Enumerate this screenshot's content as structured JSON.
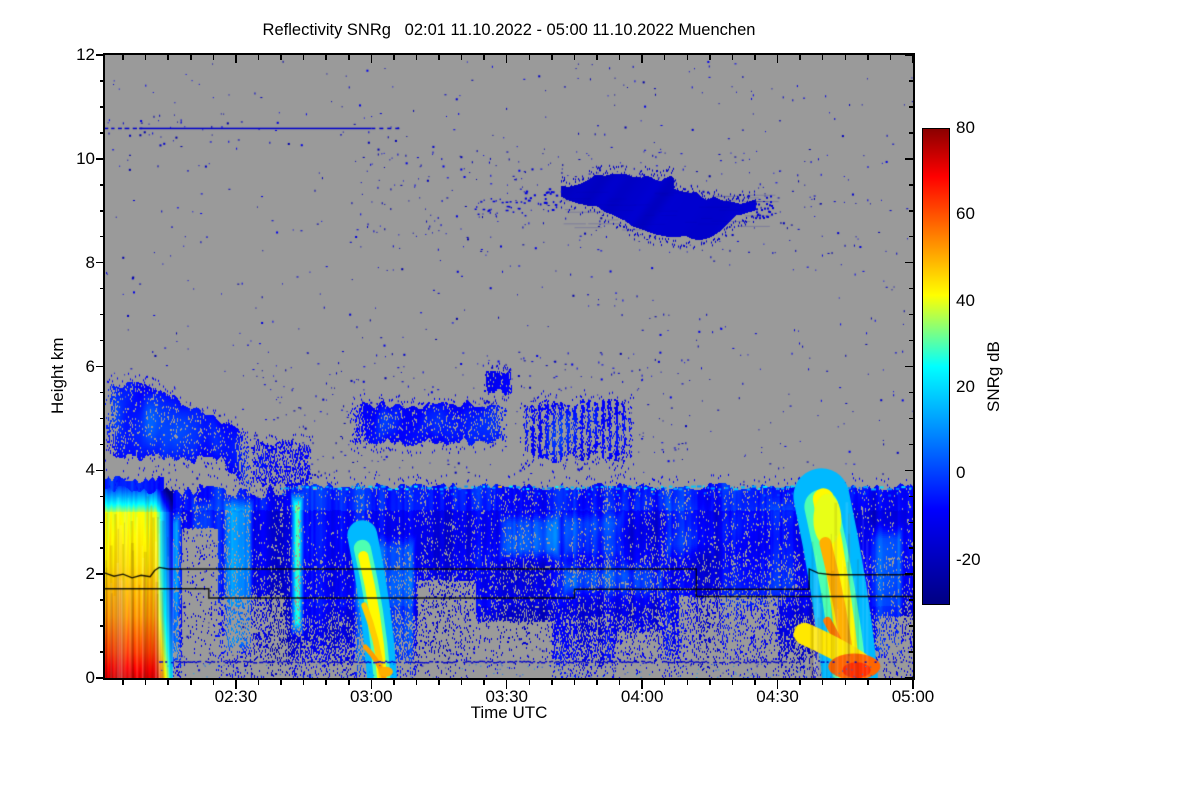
{
  "chart_data": {
    "type": "heatmap",
    "title": "Reflectivity SNRg   02:01 11.10.2022 - 05:00 11.10.2022 Muenchen",
    "station": "Muenchen",
    "date": "11.10.2022",
    "xlabel": "Time UTC",
    "ylabel": "Height km",
    "x_start": "02:01",
    "x_end": "05:00",
    "ylim_km": [
      0,
      12
    ],
    "x_ticks": [
      "02:30",
      "03:00",
      "03:30",
      "04:00",
      "04:30",
      "05:00"
    ],
    "x_minor_tick_minutes": 5,
    "y_ticks": [
      0,
      2,
      4,
      6,
      8,
      10,
      12
    ],
    "y_minor_tick_km": 0.5,
    "background_gray": "#9a9a9a",
    "colormap": "jet",
    "colorbar": {
      "label": "SNRg dB",
      "ticks": [
        80,
        60,
        40,
        20,
        0,
        -20
      ],
      "minor_tick_db": 5,
      "range_db": [
        -30,
        80
      ]
    },
    "features": {
      "speckle_noise": {
        "count": 1600,
        "db_min": -24,
        "db_max": -10
      },
      "line_10_6km": {
        "t0": "02:01",
        "t1": "03:00",
        "t1_dashed": "03:04",
        "km": 10.6,
        "db": -17
      },
      "high_cloud": {
        "wisps_t0": "03:22",
        "wisps_t1": "03:34",
        "bridge_t0": "03:34",
        "bridge_t1": "03:42",
        "dense_t0": "03:42",
        "dense_t1": "04:25",
        "tail_t1": "04:29",
        "center_km": 9.2,
        "top_km": 9.65,
        "base_km": 8.75,
        "droop_km": 8.45,
        "db": -17
      },
      "mid_clouds": [
        {
          "t0": "02:01",
          "t1": "02:33",
          "base_km": 4.25,
          "top_km": 5.62,
          "db": -7,
          "boost": 14,
          "descend_end": true
        },
        {
          "t0": "02:33",
          "t1": "02:47",
          "base_km": 3.75,
          "top_km": 4.55,
          "db": -10,
          "boost": 4,
          "sparse": 0.55
        },
        {
          "t0": "02:55",
          "t1": "03:30",
          "base_km": 4.55,
          "top_km": 5.25,
          "db": -8,
          "boost": 10
        },
        {
          "t0": "03:25",
          "t1": "03:31",
          "base_km": 5.5,
          "top_km": 5.92,
          "db": -11,
          "boost": 0
        },
        {
          "t0": "03:33",
          "t1": "03:58",
          "base_km": 4.25,
          "top_km": 5.3,
          "db": -9,
          "boost": 8,
          "streaky": true
        }
      ],
      "precip_layer": {
        "t0": "02:01",
        "t1": "05:00",
        "top_km": 3.68,
        "bright_patches": [
          {
            "t0": "02:13",
            "t1": "02:18",
            "km0": 0.2,
            "km1": 3.3,
            "boost": 22
          },
          {
            "t0": "02:20",
            "t1": "02:25",
            "km0": 2.6,
            "km1": 3.5,
            "boost": 10
          },
          {
            "t0": "02:27",
            "t1": "02:34",
            "km0": 0.4,
            "km1": 3.5,
            "boost": 18
          },
          {
            "t0": "02:42",
            "t1": "02:45",
            "km0": 0.8,
            "km1": 3.6,
            "boost": 38
          },
          {
            "t0": "02:56",
            "t1": "03:10",
            "km0": 0.0,
            "km1": 2.8,
            "boost": 14
          },
          {
            "t0": "03:28",
            "t1": "03:42",
            "km0": 2.2,
            "km1": 3.3,
            "boost": 16
          },
          {
            "t0": "03:42",
            "t1": "03:56",
            "km0": 2.2,
            "km1": 3.3,
            "boost": 10
          },
          {
            "t0": "03:42",
            "t1": "04:05",
            "km0": 1.5,
            "km1": 2.3,
            "boost": 12
          },
          {
            "t0": "04:05",
            "t1": "04:16",
            "km0": 2.3,
            "km1": 3.5,
            "boost": 6
          },
          {
            "t0": "04:28",
            "t1": "04:35",
            "km0": 1.5,
            "km1": 3.5,
            "boost": 6
          },
          {
            "t0": "04:50",
            "t1": "04:58",
            "km0": 0.3,
            "km1": 3.0,
            "boost": 13
          }
        ],
        "gaps": [
          {
            "t0": "02:18",
            "t1": "02:26",
            "km1": 2.9,
            "factor": 0.08
          },
          {
            "t0": "02:26",
            "t1": "02:41",
            "km1": 1.6,
            "factor": 0.45
          },
          {
            "t0": "03:10",
            "t1": "03:23",
            "km1": 1.9,
            "factor": 0.25
          },
          {
            "t0": "03:21",
            "t1": "03:40",
            "km1": 1.1,
            "factor": 0.15
          },
          {
            "t0": "03:54",
            "t1": "04:04",
            "km1": 0.9,
            "factor": 0.3
          },
          {
            "t0": "04:08",
            "t1": "04:30",
            "km1": 1.6,
            "factor": 0.35
          },
          {
            "t0": "04:52",
            "t1": "05:00",
            "km1": 1.2,
            "factor": 0.4
          }
        ]
      },
      "cores": [
        {
          "name": "front-core",
          "t0": "02:01",
          "t1": "02:16",
          "top_km": 3.62,
          "peak_db": 72
        },
        {
          "name": "shower-0300",
          "t0": "02:59",
          "t1": "03:06",
          "top_km": 2.75,
          "peak_db": 53
        },
        {
          "name": "shower-0440",
          "t0": "04:33",
          "t1": "04:51",
          "top_km": 3.55,
          "peak_db": 62
        }
      ],
      "clutter_line": {
        "t0": "02:13",
        "t1": "04:32",
        "km": 0.32,
        "db": -19
      },
      "cloud_base_line_upper": [
        [
          "02:01",
          2.02
        ],
        [
          "02:03",
          1.96
        ],
        [
          "02:05",
          2.0
        ],
        [
          "02:07",
          1.93
        ],
        [
          "02:09",
          1.98
        ],
        [
          "02:11",
          1.95
        ],
        [
          "02:12",
          2.07
        ],
        [
          "02:13",
          2.13
        ],
        [
          "02:15",
          2.1
        ],
        [
          "04:12",
          2.1
        ],
        [
          "04:12",
          1.71
        ],
        [
          "04:37",
          1.71
        ],
        [
          "04:37",
          2.1
        ],
        [
          "04:39",
          2.02
        ],
        [
          "04:42",
          1.99
        ],
        [
          "05:00",
          1.99
        ]
      ],
      "cloud_base_line_lower": [
        [
          "02:01",
          1.72
        ],
        [
          "02:24",
          1.72
        ],
        [
          "02:24",
          1.54
        ],
        [
          "03:45",
          1.54
        ],
        [
          "03:45",
          1.71
        ],
        [
          "04:12",
          1.71
        ],
        [
          "04:12",
          1.57
        ],
        [
          "05:00",
          1.57
        ]
      ]
    }
  }
}
